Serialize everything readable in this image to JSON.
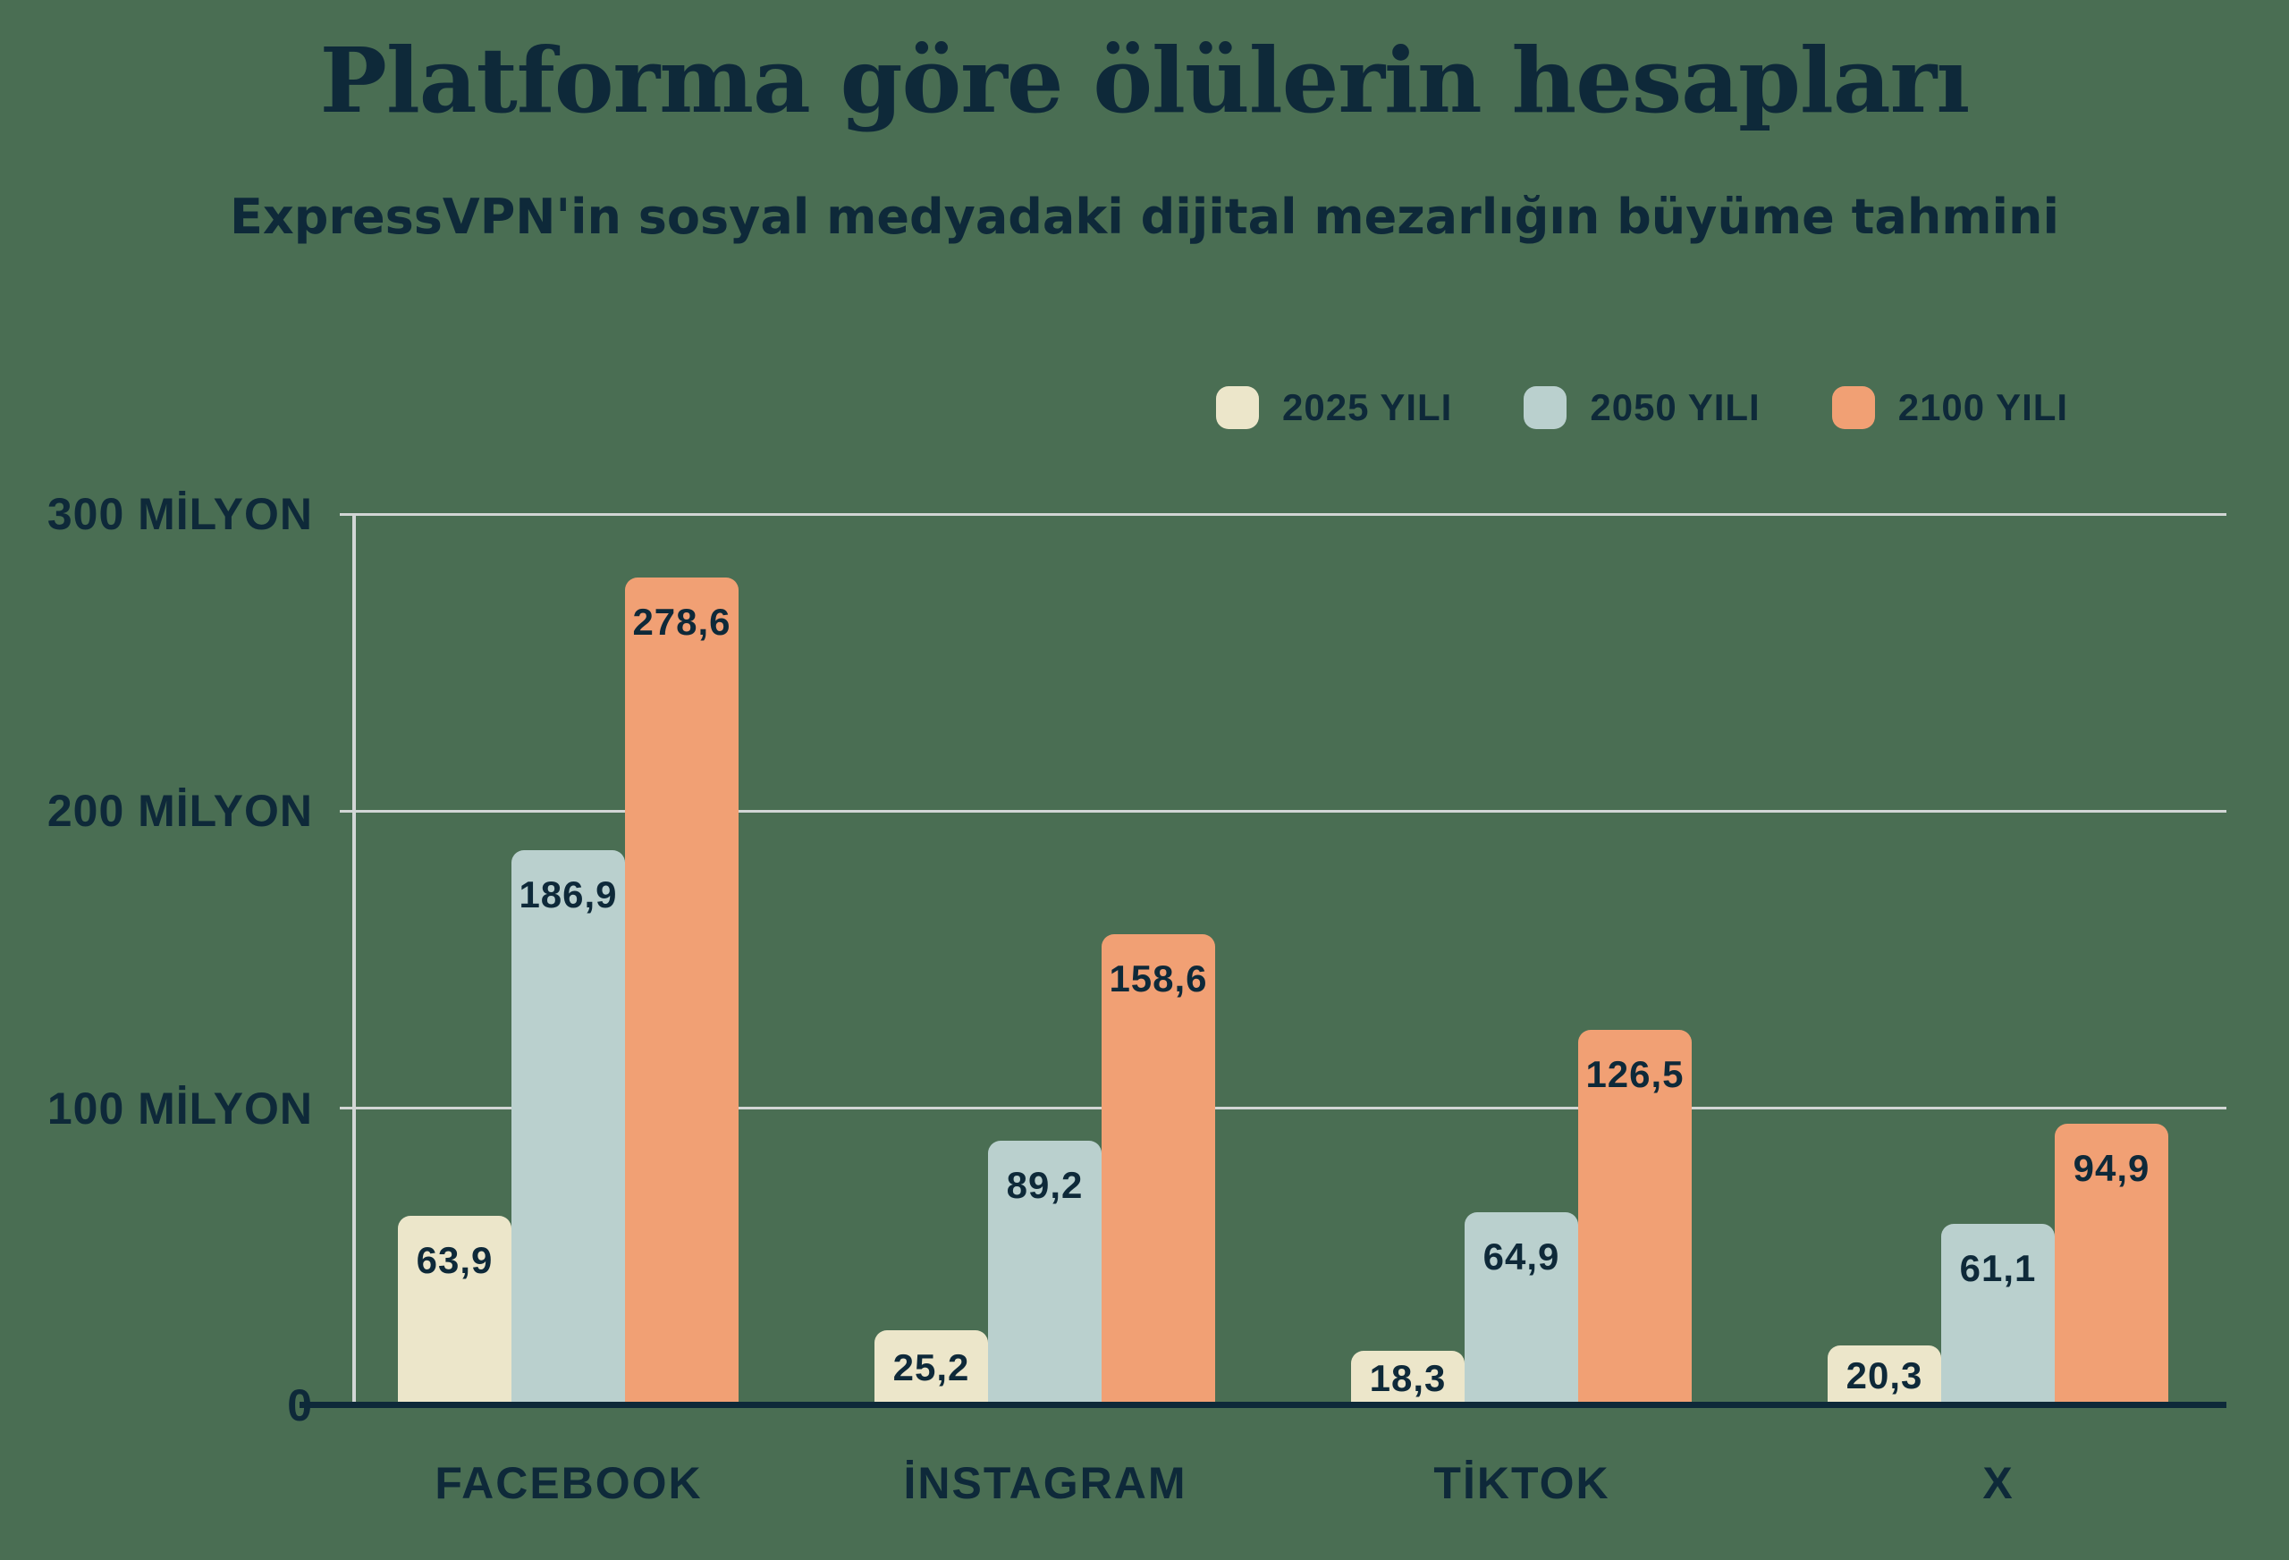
{
  "header": {
    "title": "Platforma göre ölülerin hesapları",
    "subtitle": "ExpressVPN'in sosyal medyadaki dijital mezarlığın büyüme tahmini"
  },
  "colors": {
    "background": "#4a6e53",
    "text": "#0e2939",
    "gridline": "#d2d6d5",
    "baseline": "#0e2939",
    "series_2025": "#ece6ca",
    "series_2050": "#bad0ce",
    "series_2100": "#f1a074"
  },
  "chart_data": {
    "type": "bar",
    "title": "Platforma göre ölülerin hesapları",
    "subtitle": "ExpressVPN'in sosyal medyadaki dijital mezarlığın büyüme tahmini",
    "categories": [
      "FACEBOOK",
      "İNSTAGRAM",
      "TİKTOK",
      "X"
    ],
    "series": [
      {
        "name": "2025 YILI",
        "color": "#ece6ca",
        "values": [
          63.9,
          25.2,
          18.3,
          20.3
        ],
        "labels": [
          "63,9",
          "25,2",
          "18,3",
          "20,3"
        ]
      },
      {
        "name": "2050 YILI",
        "color": "#bad0ce",
        "values": [
          186.9,
          89.2,
          64.9,
          61.1
        ],
        "labels": [
          "186,9",
          "89,2",
          "64,9",
          "61,1"
        ]
      },
      {
        "name": "2100 YILI",
        "color": "#f1a074",
        "values": [
          278.6,
          158.6,
          126.5,
          94.9
        ],
        "labels": [
          "278,6",
          "158,6",
          "126,5",
          "94,9"
        ]
      }
    ],
    "y_axis": {
      "unit": "milyon",
      "max": 300,
      "ticks": [
        {
          "value": 300,
          "label": "300 MİLYON"
        },
        {
          "value": 200,
          "label": "200 MİLYON"
        },
        {
          "value": 100,
          "label": "100 MİLYON"
        },
        {
          "value": 0,
          "label": "0"
        }
      ]
    },
    "legend_position": "top-right",
    "grid": "horizontal"
  }
}
